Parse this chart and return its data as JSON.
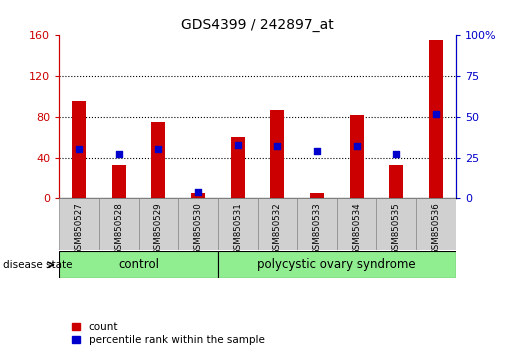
{
  "title": "GDS4399 / 242897_at",
  "samples": [
    "GSM850527",
    "GSM850528",
    "GSM850529",
    "GSM850530",
    "GSM850531",
    "GSM850532",
    "GSM850533",
    "GSM850534",
    "GSM850535",
    "GSM850536"
  ],
  "count_values": [
    96,
    33,
    75,
    5,
    60,
    87,
    5,
    82,
    33,
    155
  ],
  "percentile_values": [
    30,
    27,
    30,
    4,
    33,
    32,
    29,
    32,
    27,
    52
  ],
  "left_ylim": [
    0,
    160
  ],
  "right_ylim": [
    0,
    100
  ],
  "left_yticks": [
    0,
    40,
    80,
    120,
    160
  ],
  "right_yticks": [
    0,
    25,
    50,
    75,
    100
  ],
  "left_yticklabels": [
    "0",
    "40",
    "80",
    "120",
    "160"
  ],
  "right_yticklabels": [
    "0",
    "25",
    "50",
    "75",
    "100%"
  ],
  "bar_color": "#cc0000",
  "dot_color": "#0000cc",
  "control_group_count": 4,
  "polycystic_group_count": 6,
  "control_label": "control",
  "polycystic_label": "polycystic ovary syndrome",
  "disease_state_label": "disease state",
  "group_bg_color": "#90ee90",
  "tick_label_bg": "#d0d0d0",
  "legend_count_label": "count",
  "legend_percentile_label": "percentile rank within the sample",
  "bar_width": 0.35,
  "dot_size": 18,
  "left_axis_color": "#cc0000",
  "right_axis_color": "#0000cc",
  "grid_yticks": [
    40,
    80,
    120
  ]
}
